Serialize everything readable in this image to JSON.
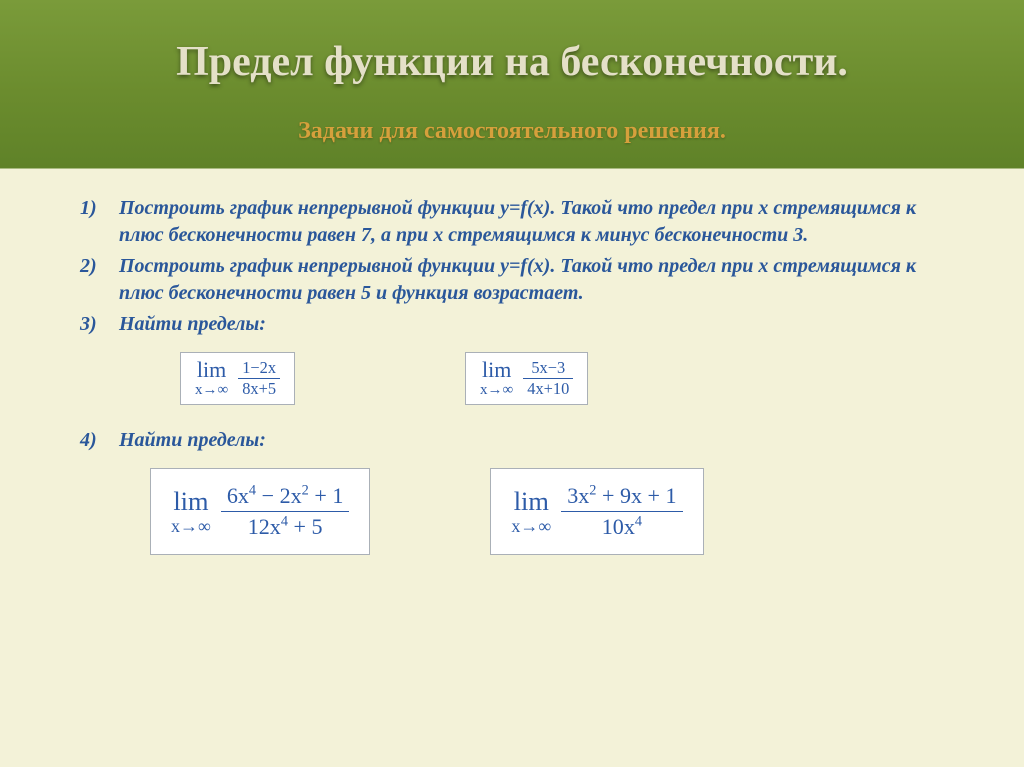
{
  "colors": {
    "header_gradient_top": "#7a9b3a",
    "header_gradient_bottom": "#5f8228",
    "page_background": "#f3f2d8",
    "title_color": "#e4e0c8",
    "subtitle_color": "#d6a03c",
    "task_text_color": "#2a579a",
    "formula_text_color": "#2d5ba8",
    "formula_bg": "#ffffff",
    "formula_border": "#aab0b7"
  },
  "typography": {
    "family": "Times New Roman",
    "title_size": 42,
    "subtitle_size": 24,
    "task_size": 20,
    "formula_small_size": 20,
    "formula_big_size": 24
  },
  "title": "Предел функции на бесконечности.",
  "subtitle": "Задачи для самостоятельного решения.",
  "tasks": [
    {
      "num": "1)",
      "text": "Построить график непрерывной функции y=f(x). Такой что предел при х стремящимся к плюс бесконечности равен 7, а при х стремящимся к минус бесконечности 3."
    },
    {
      "num": "2)",
      "text": " Построить график непрерывной функции y=f(x). Такой что предел при х стремящимся к плюс бесконечности равен 5 и функция возрастает."
    },
    {
      "num": "3)",
      "text": "Найти пределы:"
    },
    {
      "num": "4)",
      "text": "Найти пределы:"
    }
  ],
  "formula_row_1": {
    "type": "limit_fraction_row",
    "items": [
      {
        "lim": "lim",
        "sub": "x→∞",
        "numer": "1−2x",
        "denom": "8x+5"
      },
      {
        "lim": "lim",
        "sub": "x→∞",
        "numer": "5x−3",
        "denom": "4x+10"
      }
    ]
  },
  "formula_row_2": {
    "type": "limit_fraction_row",
    "items": [
      {
        "lim": "lim",
        "sub": "x→∞",
        "numer_html": "6x<sup>4</sup> − 2x<sup>2</sup> + 1",
        "denom_html": "12x<sup>4</sup> + 5"
      },
      {
        "lim": "lim",
        "sub": "x→∞",
        "numer_html": "3x<sup>2</sup> + 9x + 1",
        "denom_html": "10x<sup>4</sup>"
      }
    ]
  }
}
